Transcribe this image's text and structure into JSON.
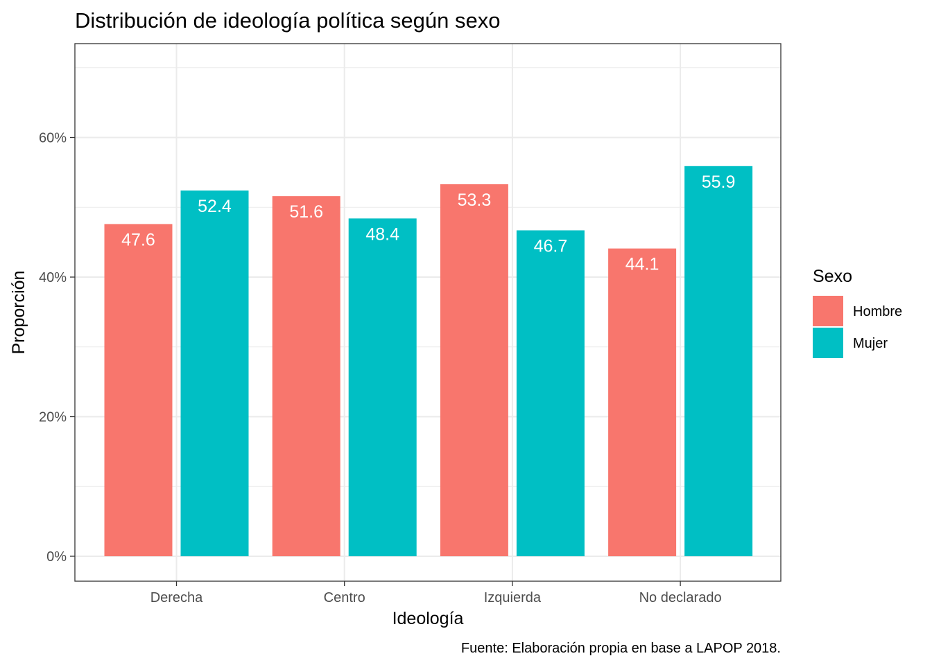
{
  "chart_data": {
    "type": "bar",
    "title": "Distribución de ideología política según sexo",
    "xlabel": "Ideología",
    "ylabel": "Proporción",
    "categories": [
      "Derecha",
      "Centro",
      "Izquierda",
      "No declarado"
    ],
    "series": [
      {
        "name": "Hombre",
        "values": [
          47.6,
          51.6,
          53.3,
          44.1
        ],
        "color": "#F8766D"
      },
      {
        "name": "Mujer",
        "values": [
          52.4,
          48.4,
          46.7,
          55.9
        ],
        "color": "#00BFC4"
      }
    ],
    "data_labels": [
      [
        "47.6",
        "51.6",
        "53.3",
        "44.1"
      ],
      [
        "52.4",
        "48.4",
        "46.7",
        "55.9"
      ]
    ],
    "ylim": [
      0,
      70
    ],
    "yticks": [
      0,
      20,
      40,
      60
    ],
    "ytick_labels": [
      "0%",
      "20%",
      "40%",
      "60%"
    ],
    "grid": true,
    "legend": {
      "title": "Sexo",
      "position": "right"
    },
    "caption": "Fuente: Elaboración propia en base a LAPOP 2018."
  }
}
